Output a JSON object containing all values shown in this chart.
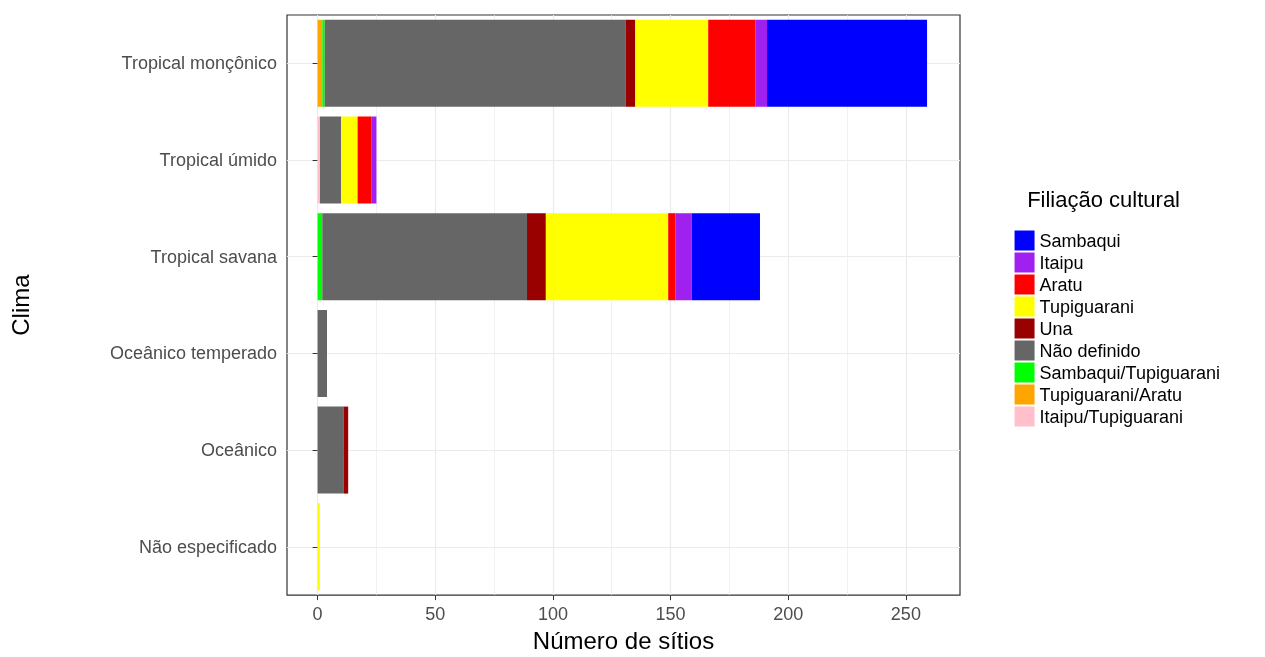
{
  "chart_data": {
    "type": "bar",
    "orientation": "horizontal",
    "stacked": true,
    "xlabel": "Número de sítios",
    "ylabel": "Clima",
    "legend_title": "Filiação cultural",
    "legend": "right",
    "grid": true,
    "categories": [
      "Tropical monçônico",
      "Tropical úmido",
      "Tropical savana",
      "Oceânico temperado",
      "Oceânico",
      "Não especificado"
    ],
    "xlim": [
      -13,
      273
    ],
    "xticks": [
      0,
      50,
      100,
      150,
      200,
      250
    ],
    "series": [
      {
        "name": "Itaipu/Tupiguarani",
        "color": "#ffc0cb",
        "values": [
          null,
          1,
          null,
          null,
          null,
          null
        ]
      },
      {
        "name": "Tupiguarani/Aratu",
        "color": "#ffa500",
        "values": [
          2,
          null,
          null,
          null,
          null,
          null
        ]
      },
      {
        "name": "Sambaqui/Tupiguarani",
        "color": "#00ff00",
        "values": [
          1,
          null,
          2,
          null,
          null,
          null
        ]
      },
      {
        "name": "Não definido",
        "color": "#666666",
        "values": [
          128,
          9,
          87,
          4,
          11,
          null
        ]
      },
      {
        "name": "Una",
        "color": "#990000",
        "values": [
          4,
          null,
          8,
          null,
          2,
          null
        ]
      },
      {
        "name": "Tupiguarani",
        "color": "#ffff00",
        "values": [
          31,
          7,
          52,
          null,
          null,
          1
        ]
      },
      {
        "name": "Aratu",
        "color": "#ff0000",
        "values": [
          20,
          6,
          3,
          null,
          null,
          null
        ]
      },
      {
        "name": "Itaipu",
        "color": "#a020f0",
        "values": [
          5,
          2,
          7,
          null,
          null,
          null
        ]
      },
      {
        "name": "Sambaqui",
        "color": "#0000ff",
        "values": [
          68,
          null,
          29,
          null,
          null,
          null
        ]
      }
    ]
  }
}
